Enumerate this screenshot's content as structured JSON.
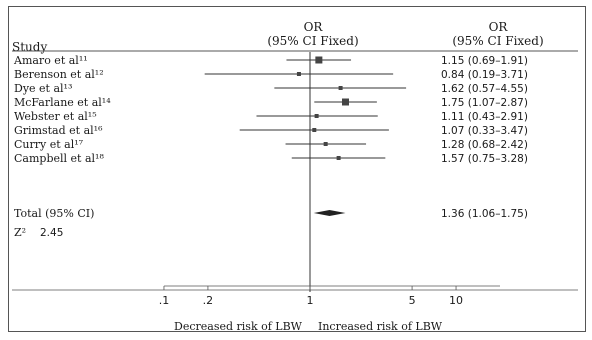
{
  "chart_data": {
    "type": "forest",
    "header": {
      "study_label": "Study",
      "effect_title": "OR",
      "effect_subtitle": "(95% CI Fixed)",
      "ci_title": "OR",
      "ci_subtitle": "(95% CI Fixed)"
    },
    "studies": [
      {
        "name": "Amaro et al¹¹",
        "or": 1.15,
        "lo": 0.69,
        "hi": 1.91,
        "or_text": "1.15 (0.69–1.91)"
      },
      {
        "name": "Berenson et al¹²",
        "or": 0.84,
        "lo": 0.19,
        "hi": 3.71,
        "or_text": "0.84 (0.19–3.71)"
      },
      {
        "name": "Dye et al¹³",
        "or": 1.62,
        "lo": 0.57,
        "hi": 4.55,
        "or_text": "1.62 (0.57–4.55)"
      },
      {
        "name": "McFarlane et al¹⁴",
        "or": 1.75,
        "lo": 1.07,
        "hi": 2.87,
        "or_text": "1.75 (1.07–2.87)"
      },
      {
        "name": "Webster et al¹⁵",
        "or": 1.11,
        "lo": 0.43,
        "hi": 2.91,
        "or_text": "1.11 (0.43–2.91)"
      },
      {
        "name": "Grimstad et al¹⁶",
        "or": 1.07,
        "lo": 0.33,
        "hi": 3.47,
        "or_text": "1.07 (0.33–3.47)"
      },
      {
        "name": "Curry et al¹⁷",
        "or": 1.28,
        "lo": 0.68,
        "hi": 2.42,
        "or_text": "1.28 (0.68–2.42)"
      },
      {
        "name": "Campbell et al¹⁸",
        "or": 1.57,
        "lo": 0.75,
        "hi": 3.28,
        "or_text": "1.57 (0.75–3.28)"
      }
    ],
    "total": {
      "name": "Total (95% CI)",
      "or": 1.36,
      "lo": 1.06,
      "hi": 1.75,
      "or_text": "1.36 (1.06–1.75)"
    },
    "stat_label": "Z²",
    "stat_value": "2.45",
    "x_scale": "log",
    "xlim": [
      0.05,
      20
    ],
    "reference_line": 1,
    "x_ticks": [
      0.1,
      0.2,
      1,
      5,
      10
    ],
    "x_tick_labels": [
      ".1",
      ".2",
      "1",
      "5",
      "10"
    ],
    "xlabel_left": "Decreased risk of LBW",
    "xlabel_right": "Increased risk of LBW",
    "colors": {
      "marker": "#444444",
      "line": "#333333",
      "frame": "#555555"
    }
  }
}
